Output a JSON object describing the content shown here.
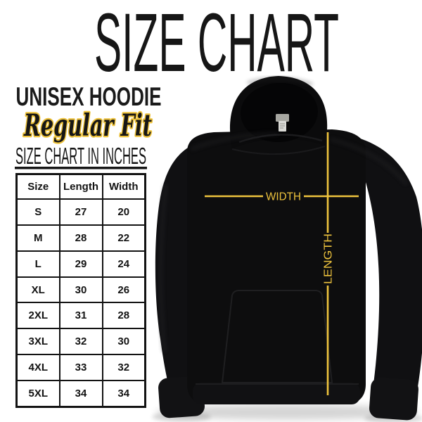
{
  "title": "SIZE CHART",
  "product": {
    "name": "UNISEX HOODIE",
    "fit": "Regular Fit",
    "table_heading": "SIZE CHART IN INCHES"
  },
  "size_table": {
    "columns": [
      "Size",
      "Length",
      "Width"
    ],
    "rows": [
      [
        "S",
        "27",
        "20"
      ],
      [
        "M",
        "28",
        "22"
      ],
      [
        "L",
        "29",
        "24"
      ],
      [
        "XL",
        "30",
        "26"
      ],
      [
        "2XL",
        "31",
        "28"
      ],
      [
        "3XL",
        "32",
        "30"
      ],
      [
        "4XL",
        "33",
        "32"
      ],
      [
        "5XL",
        "34",
        "34"
      ]
    ]
  },
  "diagram": {
    "width_label": "WIDTH",
    "length_label": "LENGTH"
  },
  "colors": {
    "accent_gold": "#eec33d",
    "ink": "#141414",
    "hoodie_black": "#0d0d0e",
    "background": "#ffffff"
  },
  "chart_data": {
    "type": "table",
    "title": "Unisex Hoodie Size Chart (inches)",
    "columns": [
      "Size",
      "Length",
      "Width"
    ],
    "rows": [
      [
        "S",
        27,
        20
      ],
      [
        "M",
        28,
        22
      ],
      [
        "L",
        29,
        24
      ],
      [
        "XL",
        30,
        26
      ],
      [
        "2XL",
        31,
        28
      ],
      [
        "3XL",
        32,
        30
      ],
      [
        "4XL",
        33,
        32
      ],
      [
        "5XL",
        34,
        34
      ]
    ]
  }
}
